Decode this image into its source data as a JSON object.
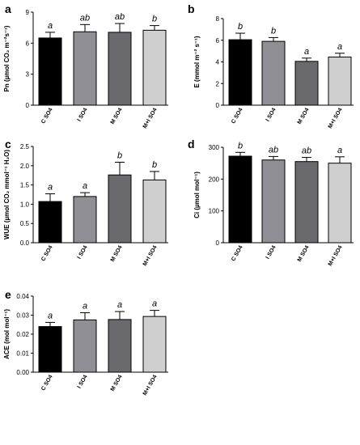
{
  "colors": {
    "C SO4": "#000000",
    "I SO4": "#8f8f95",
    "M SO4": "#6a6a6e",
    "M+I SO4": "#cfcfcf",
    "edge": "#000000"
  },
  "chart_data": [
    {
      "type": "bar",
      "panel": "a",
      "ylabel": "Pn (µmol CO₂ m⁻²s⁻¹)",
      "ylim": [
        0,
        9
      ],
      "yticks": [
        "0",
        "3",
        "6",
        "9"
      ],
      "categories": [
        "C SO4",
        "I SO4",
        "M SO4",
        "M+I SO4"
      ],
      "values": [
        6.5,
        7.1,
        7.05,
        7.25
      ],
      "errors": [
        0.55,
        0.7,
        0.85,
        0.45
      ],
      "significance": [
        "a",
        "ab",
        "ab",
        "b"
      ]
    },
    {
      "type": "bar",
      "panel": "b",
      "ylabel": "E (mmol m⁻² s⁻¹)",
      "ylim": [
        0,
        8
      ],
      "yticks": [
        "0",
        "2",
        "4",
        "6",
        "8"
      ],
      "categories": [
        "C SO4",
        "I SO4",
        "M SO4",
        "M+I SO4"
      ],
      "values": [
        6.05,
        5.9,
        4.05,
        4.45
      ],
      "errors": [
        0.6,
        0.35,
        0.3,
        0.35
      ],
      "significance": [
        "b",
        "b",
        "a",
        "a"
      ]
    },
    {
      "type": "bar",
      "panel": "c",
      "ylabel": "WUE (µmol CO₂ mmol⁻¹ H₂O)",
      "ylim": [
        0,
        2.5
      ],
      "yticks": [
        "0.0",
        "0.5",
        "1.0",
        "1.5",
        "2.0",
        "2.5"
      ],
      "categories": [
        "C SO4",
        "I SO4",
        "M SO4",
        "M+I SO4"
      ],
      "values": [
        1.07,
        1.2,
        1.76,
        1.63
      ],
      "errors": [
        0.2,
        0.1,
        0.33,
        0.22
      ],
      "significance": [
        "a",
        "a",
        "b",
        "b"
      ]
    },
    {
      "type": "bar",
      "panel": "d",
      "ylabel": "Ci (µmol mol⁻¹)",
      "ylim": [
        0,
        300
      ],
      "yticks": [
        "0",
        "100",
        "200",
        "300"
      ],
      "categories": [
        "C SO4",
        "I SO4",
        "M SO4",
        "M+I SO4"
      ],
      "values": [
        272,
        260,
        255,
        250
      ],
      "errors": [
        12,
        11,
        13,
        20
      ],
      "significance": [
        "b",
        "ab",
        "ab",
        "a"
      ]
    },
    {
      "type": "bar",
      "panel": "e",
      "ylabel": "ACE (mol mol⁻¹)",
      "ylim": [
        0,
        0.04
      ],
      "yticks": [
        "0.00",
        "0.01",
        "0.02",
        "0.03",
        "0.04"
      ],
      "categories": [
        "C SO4",
        "I SO4",
        "M SO4",
        "M+I SO4"
      ],
      "values": [
        0.024,
        0.0275,
        0.0277,
        0.0293
      ],
      "errors": [
        0.0022,
        0.0038,
        0.0042,
        0.0032
      ],
      "significance": [
        "a",
        "a",
        "a",
        "a"
      ]
    }
  ]
}
